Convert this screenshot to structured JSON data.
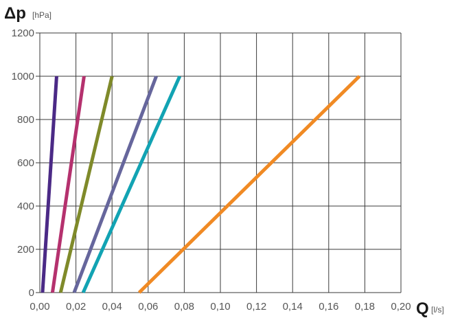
{
  "chart_data": {
    "type": "line",
    "x_axis": {
      "symbol": "Q",
      "unit": "[l/s]",
      "range": [
        0,
        0.2
      ],
      "tick_labels": [
        "0,00",
        "0,02",
        "0,04",
        "0,06",
        "0,08",
        "0,10",
        "0,12",
        "0,14",
        "0,16",
        "0,18",
        "0,20"
      ]
    },
    "y_axis": {
      "symbol": "Δp",
      "unit": "[hPa]",
      "range": [
        0,
        1200
      ],
      "tick_labels": [
        "0",
        "200",
        "400",
        "600",
        "800",
        "1000",
        "1200"
      ]
    },
    "grid": true,
    "legend": "none",
    "series": [
      {
        "color": "#4b2a86",
        "points": [
          [
            0.0015,
            0
          ],
          [
            0.0093,
            1000
          ]
        ]
      },
      {
        "color": "#b5316e",
        "points": [
          [
            0.007,
            0
          ],
          [
            0.0245,
            1000
          ]
        ]
      },
      {
        "color": "#7f8a2a",
        "points": [
          [
            0.0115,
            0
          ],
          [
            0.04,
            1000
          ]
        ]
      },
      {
        "color": "#66669c",
        "points": [
          [
            0.019,
            0
          ],
          [
            0.0645,
            1000
          ]
        ]
      },
      {
        "color": "#12a3b3",
        "points": [
          [
            0.024,
            0
          ],
          [
            0.0775,
            1000
          ]
        ]
      },
      {
        "color": "#f08a24",
        "points": [
          [
            0.055,
            0
          ],
          [
            0.177,
            1000
          ]
        ]
      }
    ]
  }
}
